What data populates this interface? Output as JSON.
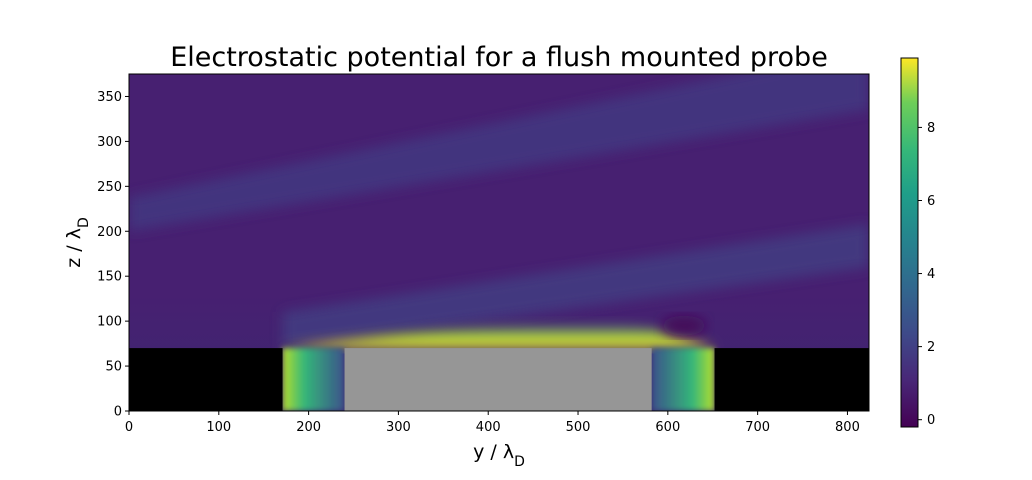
{
  "chart_data": {
    "type": "heatmap",
    "title": "Electrostatic potential for a flush mounted probe",
    "xlabel": "y / λ_D",
    "ylabel": "z / λ_D",
    "xlim": [
      0,
      824
    ],
    "ylim": [
      0,
      375
    ],
    "xticks": [
      0,
      100,
      200,
      300,
      400,
      500,
      600,
      700,
      800
    ],
    "yticks": [
      0,
      50,
      100,
      150,
      200,
      250,
      300,
      350
    ],
    "colorbar": {
      "colormap": "viridis",
      "range": [
        -0.2,
        9.9
      ],
      "ticks": [
        0,
        2,
        4,
        6,
        8
      ]
    },
    "regions": {
      "left_wall": {
        "y": [
          0,
          171
        ],
        "z": [
          0,
          70
        ],
        "color": "#000000"
      },
      "right_wall": {
        "y": [
          652,
          824
        ],
        "z": [
          0,
          70
        ],
        "color": "#000000"
      },
      "probe": {
        "y": [
          240,
          582
        ],
        "z": [
          0,
          70
        ],
        "color": "#969696"
      }
    },
    "features": {
      "background_potential": 0.7,
      "upper_beam": {
        "lower_edge": [
          [
            0,
            200
          ],
          [
            824,
            335
          ]
        ],
        "upper_edge": [
          [
            0,
            238
          ],
          [
            824,
            405
          ]
        ],
        "potential": 1.5
      },
      "lower_beam": {
        "lower_edge": [
          [
            171,
            70
          ],
          [
            824,
            160
          ]
        ],
        "upper_edge": [
          [
            171,
            110
          ],
          [
            824,
            208
          ]
        ],
        "potential": 1.6
      },
      "probe_sheath_max": 9.9
    },
    "grid": false
  }
}
